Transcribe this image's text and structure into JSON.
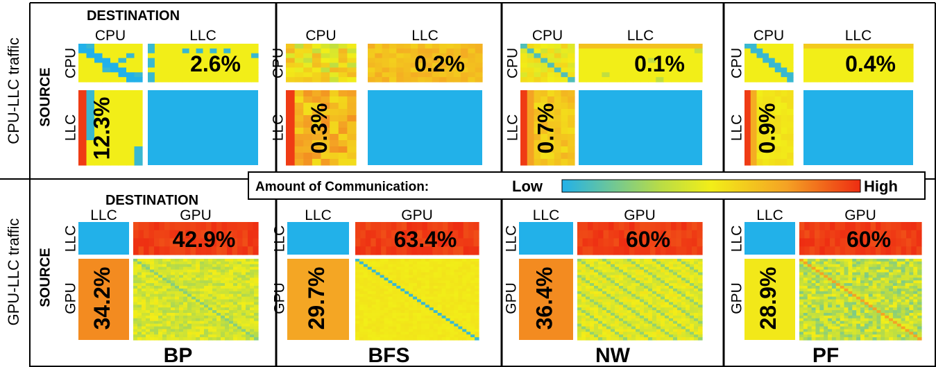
{
  "chart_data": {
    "type": "heatmap",
    "legend": {
      "title": "Amount of Communication:",
      "low": "Low",
      "high": "High",
      "colormap": [
        "#22b1e9",
        "#f2ee18",
        "#f4a324",
        "#ee2d12"
      ]
    },
    "row_titles": [
      "CPU-LLC traffic",
      "GPU-LLC traffic"
    ],
    "destination_label": "DESTINATION",
    "source_label": "SOURCE",
    "benchmarks": [
      "BP",
      "BFS",
      "NW",
      "PF"
    ],
    "rows": [
      {
        "traffic": "CPU-LLC traffic",
        "first": "CPU",
        "second": "LLC",
        "panels": [
          {
            "benchmark": "BP",
            "first_to_second": "2.6%",
            "second_to_first": "12.3%"
          },
          {
            "benchmark": "BFS",
            "first_to_second": "0.2%",
            "second_to_first": "0.3%"
          },
          {
            "benchmark": "NW",
            "first_to_second": "0.1%",
            "second_to_first": "0.7%"
          },
          {
            "benchmark": "PF",
            "first_to_second": "0.4%",
            "second_to_first": "0.9%"
          }
        ]
      },
      {
        "traffic": "GPU-LLC traffic",
        "first": "LLC",
        "second": "GPU",
        "panels": [
          {
            "benchmark": "BP",
            "first_to_second": "42.9%",
            "second_to_first": "34.2%"
          },
          {
            "benchmark": "BFS",
            "first_to_second": "63.4%",
            "second_to_first": "29.7%"
          },
          {
            "benchmark": "NW",
            "first_to_second": "60%",
            "second_to_first": "36.4%"
          },
          {
            "benchmark": "PF",
            "first_to_second": "60%",
            "second_to_first": "28.9%"
          }
        ]
      }
    ]
  }
}
